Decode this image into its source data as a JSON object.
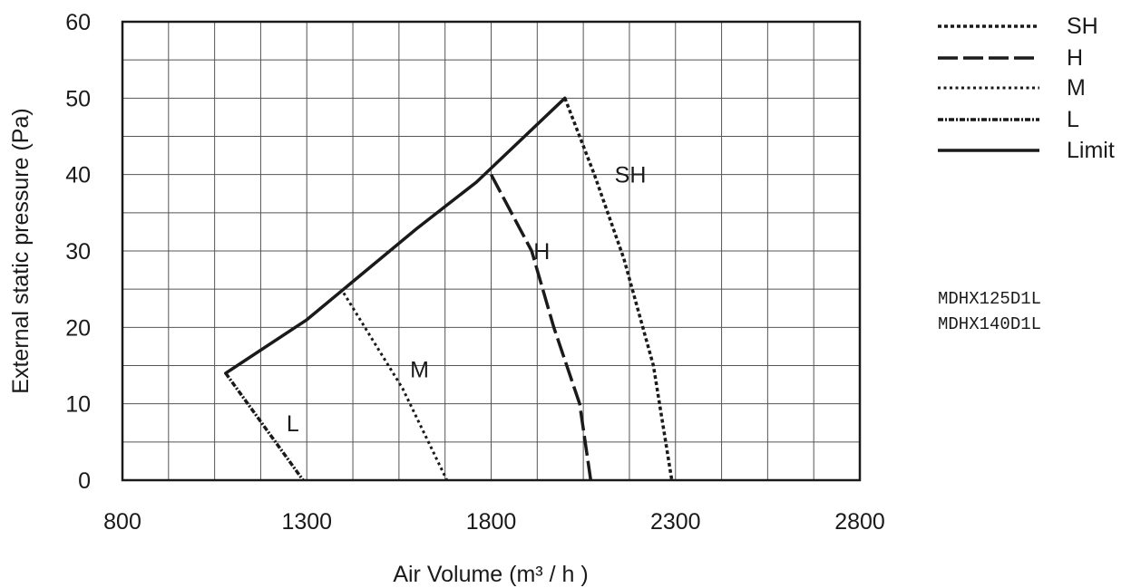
{
  "chart_data": {
    "type": "line",
    "xlabel": "Air Volume (m³ / h )",
    "ylabel": "External static pressure (Pa)",
    "xlim": [
      800,
      2800
    ],
    "ylim": [
      0,
      60
    ],
    "x_ticks": [
      800,
      1300,
      1800,
      2300,
      2800
    ],
    "y_ticks": [
      0,
      10,
      20,
      30,
      40,
      50,
      60
    ],
    "x_minor_step": 125,
    "y_minor_step": 5,
    "grid": true,
    "legend_position": "top-right",
    "series": [
      {
        "name": "SH",
        "style": "dotted-dense",
        "color": "#1a1a1a",
        "points": [
          [
            2000,
            50
          ],
          [
            2080,
            40
          ],
          [
            2160,
            29
          ],
          [
            2240,
            15
          ],
          [
            2290,
            0
          ]
        ]
      },
      {
        "name": "H",
        "style": "dashed",
        "color": "#1a1a1a",
        "points": [
          [
            1800,
            40
          ],
          [
            1910,
            30
          ],
          [
            1970,
            20
          ],
          [
            2040,
            10
          ],
          [
            2070,
            0
          ]
        ]
      },
      {
        "name": "M",
        "style": "dotted",
        "color": "#1a1a1a",
        "points": [
          [
            1400,
            24.5
          ],
          [
            1560,
            12
          ],
          [
            1680,
            0
          ]
        ]
      },
      {
        "name": "L",
        "style": "dash-dot",
        "color": "#1a1a1a",
        "points": [
          [
            1080,
            14
          ],
          [
            1290,
            0
          ]
        ]
      },
      {
        "name": "Limit",
        "style": "solid",
        "color": "#1a1a1a",
        "points": [
          [
            1080,
            14
          ],
          [
            1300,
            21
          ],
          [
            1600,
            33
          ],
          [
            1760,
            39
          ],
          [
            2000,
            50
          ]
        ]
      }
    ],
    "annotations": [
      {
        "text": "SH",
        "x": 2135,
        "y": 40
      },
      {
        "text": "H",
        "x": 1915,
        "y": 30
      },
      {
        "text": "M",
        "x": 1580,
        "y": 14.5
      },
      {
        "text": "L",
        "x": 1245,
        "y": 7.5
      }
    ],
    "models": [
      "MDHX125D1L",
      "MDHX140D1L"
    ]
  }
}
